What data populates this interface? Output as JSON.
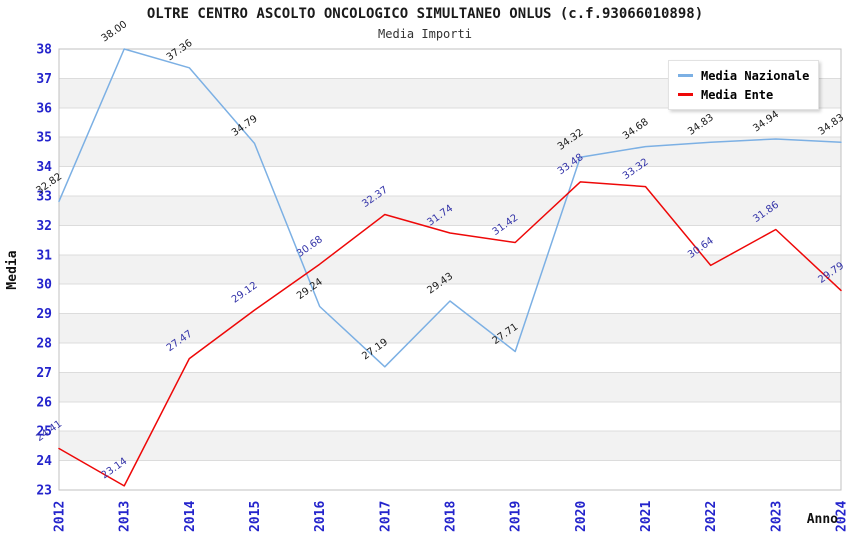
{
  "header": {
    "title": "OLTRE CENTRO ASCOLTO ONCOLOGICO SIMULTANEO ONLUS (c.f.93066010898)",
    "subtitle": "Media Importi"
  },
  "chart_data": {
    "type": "line",
    "title": "OLTRE CENTRO ASCOLTO ONCOLOGICO SIMULTANEO ONLUS (c.f.93066010898)",
    "subtitle": "Media Importi",
    "xlabel": "Anno",
    "ylabel": "Media",
    "x": [
      2012,
      2013,
      2014,
      2015,
      2016,
      2017,
      2018,
      2019,
      2020,
      2021,
      2022,
      2023,
      2024
    ],
    "series": [
      {
        "name": "Media Nazionale",
        "color": "#7cb0e4",
        "label_color": "#1a1a1a",
        "values": [
          32.82,
          38.0,
          37.36,
          34.79,
          29.24,
          27.19,
          29.43,
          27.71,
          34.32,
          34.68,
          34.83,
          34.94,
          34.83
        ]
      },
      {
        "name": "Media Ente",
        "color": "#ee0808",
        "label_color": "#3333a8",
        "values": [
          24.41,
          23.14,
          27.47,
          29.12,
          30.68,
          32.37,
          31.74,
          31.42,
          33.48,
          33.32,
          30.64,
          31.86,
          29.79
        ]
      }
    ],
    "ylim": [
      23,
      38
    ],
    "ytick_step": 1,
    "grid": "horizontal-only",
    "band_fill": "#f2f2f2",
    "grid_color": "#dcdcdc",
    "plot_border_color": "#c0c0c0",
    "axis_tick_color": "#2424cc",
    "legend_position": "top-right",
    "value_label_decimals": 2
  }
}
